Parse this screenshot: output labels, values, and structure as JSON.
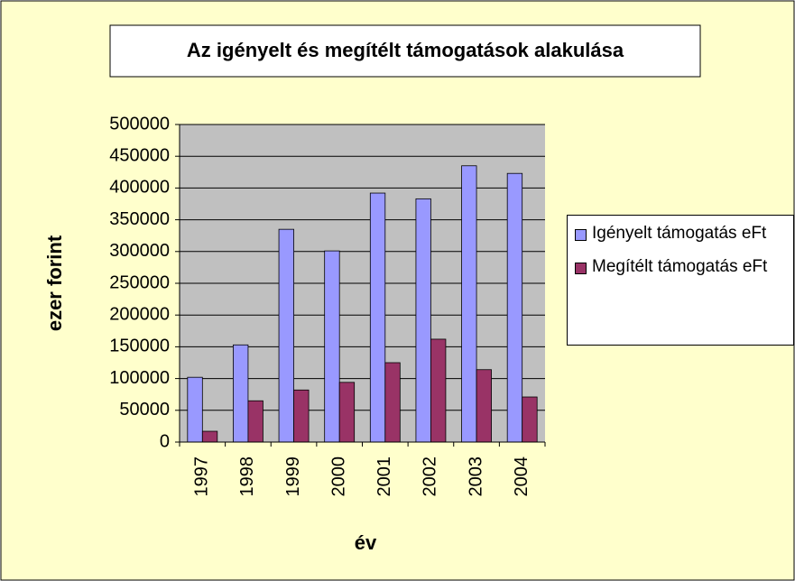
{
  "chart_data": {
    "type": "bar",
    "title": "Az igényelt és megítélt támogatások alakulása",
    "x_label": "év",
    "y_label": "ezer forint",
    "categories": [
      "1997",
      "1998",
      "1999",
      "2000",
      "2001",
      "2002",
      "2003",
      "2004"
    ],
    "series": [
      {
        "name": "Igényelt támogatás eFt",
        "color": "#9999ff",
        "values": [
          102000,
          153000,
          335000,
          301000,
          392000,
          383000,
          435000,
          423000
        ]
      },
      {
        "name": "Megítélt támogatás eFt",
        "color": "#993366",
        "values": [
          17000,
          65000,
          82000,
          94000,
          125000,
          162000,
          114000,
          71000
        ]
      }
    ],
    "ylim": [
      0,
      500000
    ],
    "yticks": [
      0,
      50000,
      100000,
      150000,
      200000,
      250000,
      300000,
      350000,
      400000,
      450000,
      500000
    ],
    "grid": true,
    "legend": "right"
  }
}
